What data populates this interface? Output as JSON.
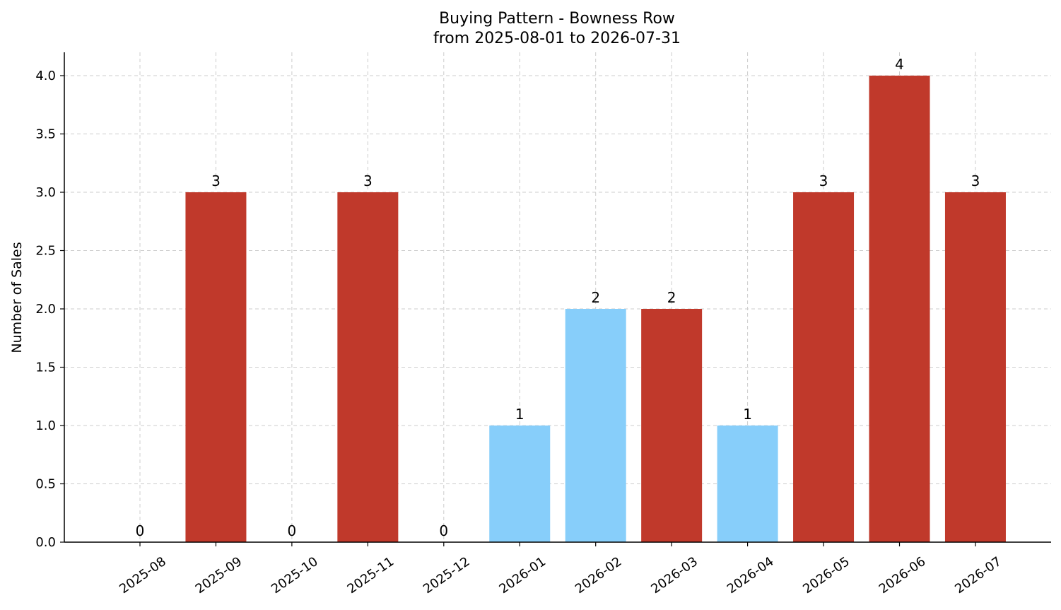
{
  "chart_data": {
    "type": "bar",
    "title": "Buying Pattern - Bowness Row",
    "subtitle": "from 2025-08-01 to 2026-07-31",
    "xlabel": "",
    "ylabel": "Number of Sales",
    "categories": [
      "2025-08",
      "2025-09",
      "2025-10",
      "2025-11",
      "2025-12",
      "2026-01",
      "2026-02",
      "2026-03",
      "2026-04",
      "2026-05",
      "2026-06",
      "2026-07"
    ],
    "values": [
      0,
      3,
      0,
      3,
      0,
      1,
      2,
      2,
      1,
      3,
      4,
      3
    ],
    "bar_colors": [
      "#c0392b",
      "#c0392b",
      "#c0392b",
      "#c0392b",
      "#c0392b",
      "#87cefa",
      "#87cefa",
      "#c0392b",
      "#87cefa",
      "#c0392b",
      "#c0392b",
      "#c0392b"
    ],
    "ylim": [
      0,
      4.2
    ],
    "yticks": [
      "0.0",
      "0.5",
      "1.0",
      "1.5",
      "2.0",
      "2.5",
      "3.0",
      "3.5",
      "4.0"
    ],
    "grid": true,
    "legend": "none"
  }
}
